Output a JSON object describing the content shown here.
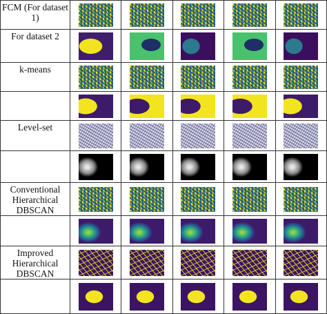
{
  "row_labels": [
    "FCM (For dataset 1)",
    "For dataset 2",
    "k-means",
    "Level-set",
    "Conventional Hierarchical DBSCAN",
    "Improved Hierarchical DBSCAN"
  ]
}
